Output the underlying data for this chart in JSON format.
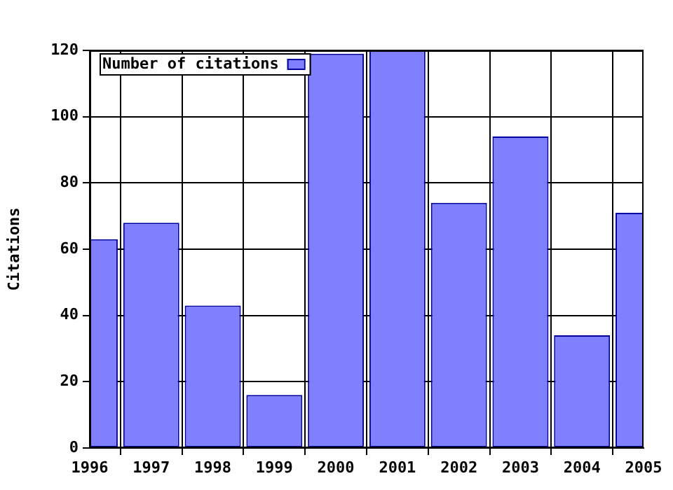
{
  "chart_data": {
    "type": "bar",
    "ylabel": "Citations",
    "x": [
      1996,
      1997,
      1998,
      1999,
      2000,
      2001,
      2002,
      2003,
      2004,
      2005
    ],
    "series": [
      {
        "name": "Number of citations",
        "color": "#8080ff",
        "values": [
          63,
          68,
          43,
          16,
          119,
          120,
          74,
          94,
          34,
          71
        ]
      }
    ],
    "xlim": [
      1996,
      2005
    ],
    "xticks": [
      1996,
      1997,
      1998,
      1999,
      2000,
      2001,
      2002,
      2003,
      2004,
      2005
    ],
    "ylim": [
      0,
      120
    ],
    "yticks": [
      0,
      20,
      40,
      60,
      80,
      100,
      120
    ],
    "grid": true,
    "legend": "top left"
  }
}
